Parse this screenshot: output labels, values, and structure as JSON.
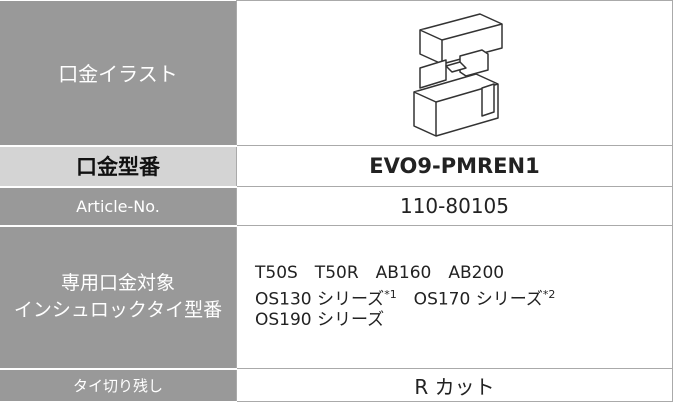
{
  "table": {
    "rows": [
      {
        "label": "口金イラスト"
      },
      {
        "label": "口金型番",
        "value": "EVO9-PMREN1"
      },
      {
        "label": "Article-No.",
        "value": "110-80105"
      },
      {
        "label": [
          "専用口金対象",
          "インシュロックタイ型番"
        ],
        "lines": [
          [
            {
              "text": "T50S　T50R　AB160　AB200"
            }
          ],
          [
            {
              "text": "OS130 シリーズ",
              "sup": "*1"
            },
            {
              "text": "　OS170 シリーズ",
              "sup": "*2"
            }
          ],
          [
            {
              "text": "OS190 シリーズ"
            }
          ]
        ]
      },
      {
        "label": "タイ切り残し",
        "value": "R カット"
      }
    ]
  }
}
